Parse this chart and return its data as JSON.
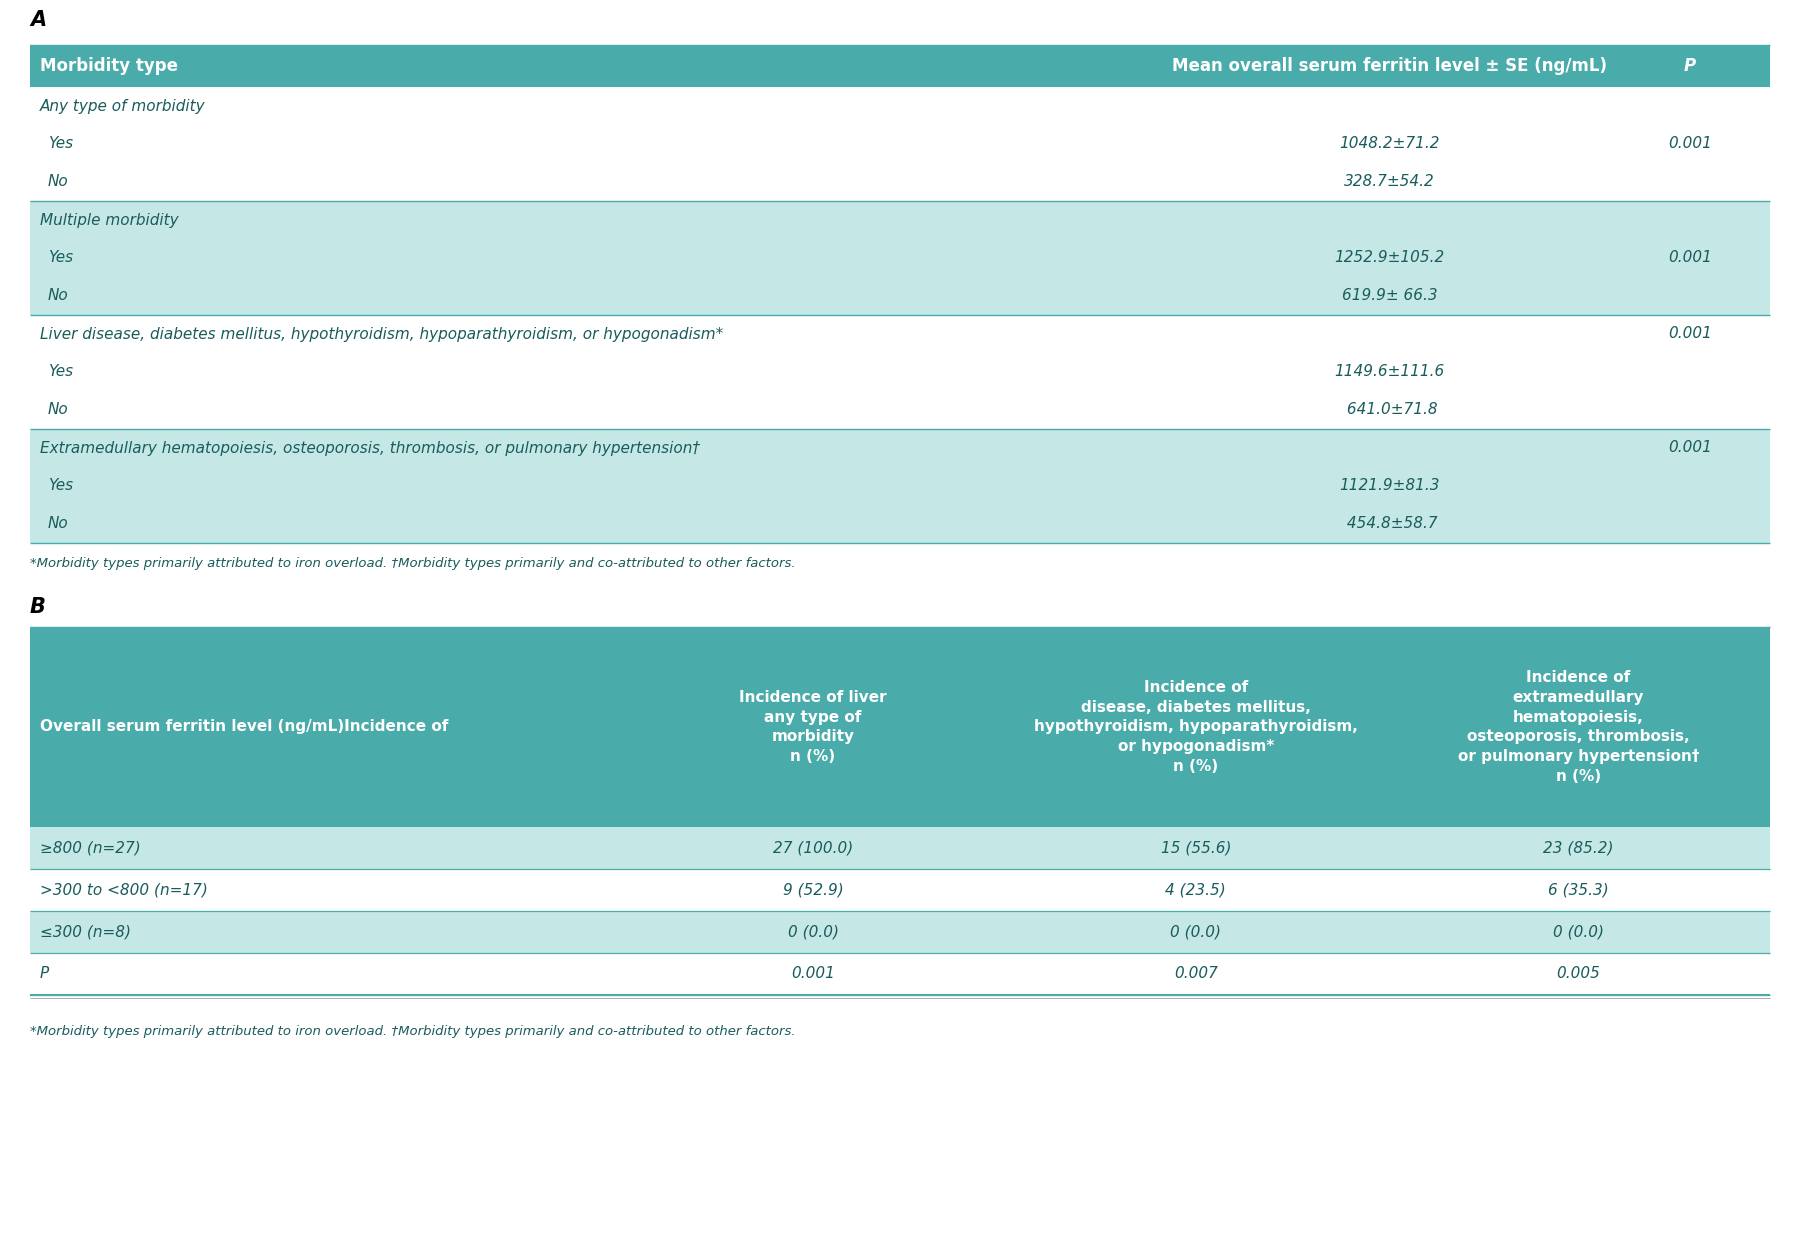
{
  "teal_header": "#4AACAA",
  "teal_light": "#C5E8E6",
  "white": "#FFFFFF",
  "black": "#000000",
  "dark_text": "#1A5C5C",
  "section_A_label": "A",
  "section_B_label": "B",
  "tableA_header": [
    "Morbidity type",
    "Mean overall serum ferritin level ± SE (ng/mL)",
    "P"
  ],
  "tableA_rows": [
    {
      "label": "Any type of morbidity",
      "value": "",
      "p": "",
      "shade": false
    },
    {
      "label": "Yes",
      "value": "1048.2±71.2",
      "p": "0.001",
      "shade": false
    },
    {
      "label": "No",
      "value": "328.7±54.2",
      "p": "",
      "shade": false
    },
    {
      "label": "Multiple morbidity",
      "value": "",
      "p": "",
      "shade": true
    },
    {
      "label": "Yes",
      "value": "1252.9±105.2",
      "p": "0.001",
      "shade": true
    },
    {
      "label": "No",
      "value": "619.9± 66.3",
      "p": "",
      "shade": true
    },
    {
      "label": "Liver disease, diabetes mellitus, hypothyroidism, hypoparathyroidism, or hypogonadism*",
      "value": "",
      "p": "0.001",
      "shade": false
    },
    {
      "label": "Yes",
      "value": "1149.6±111.6",
      "p": "",
      "shade": false
    },
    {
      "label": "No",
      "value": " 641.0±71.8",
      "p": "",
      "shade": false
    },
    {
      "label": "Extramedullary hematopoiesis, osteoporosis, thrombosis, or pulmonary hypertension†",
      "value": "",
      "p": "0.001",
      "shade": true
    },
    {
      "label": "Yes",
      "value": "1121.9±81.3",
      "p": "",
      "shade": true
    },
    {
      "label": "No",
      "value": " 454.8±58.7",
      "p": "",
      "shade": true
    }
  ],
  "tableA_separators": [
    3,
    6,
    9
  ],
  "tableA_footnote": "*Morbidity types primarily attributed to iron overload. †Morbidity types primarily and co-attributed to other factors.",
  "tableB_header_col0": "Overall serum ferritin level (ng/mL)Incidence of",
  "tableB_header_col1": "Incidence of liver\nany type of\nmorbidity\nn (%)",
  "tableB_header_col2": "Incidence of\ndisease, diabetes mellitus,\nhypothyroidism, hypoparathyroidism,\nor hypogonadism*\nn (%)",
  "tableB_header_col3": "Incidence of\nextramedullary\nhematopoiesis,\nosteoporosis, thrombosis,\nor pulmonary hypertension†\nn (%)",
  "tableB_rows": [
    {
      "col0": "≥800 (n=27)",
      "col1": "27 (100.0)",
      "col2": "15 (55.6)",
      "col3": "23 (85.2)",
      "shade": true
    },
    {
      "col0": ">300 to <800 (n=17)",
      "col1": "9 (52.9)",
      "col2": "4 (23.5)",
      "col3": "6 (35.3)",
      "shade": false
    },
    {
      "col0": "≤300 (n=8)",
      "col1": "0 (0.0)",
      "col2": "0 (0.0)",
      "col3": "0 (0.0)",
      "shade": true
    },
    {
      "col0": "P",
      "col1": "0.001",
      "col2": "0.007",
      "col3": "0.005",
      "shade": false
    }
  ],
  "tableB_footnote": "*Morbidity types primarily attributed to iron overload. †Morbidity types primarily and co-attributed to other factors."
}
